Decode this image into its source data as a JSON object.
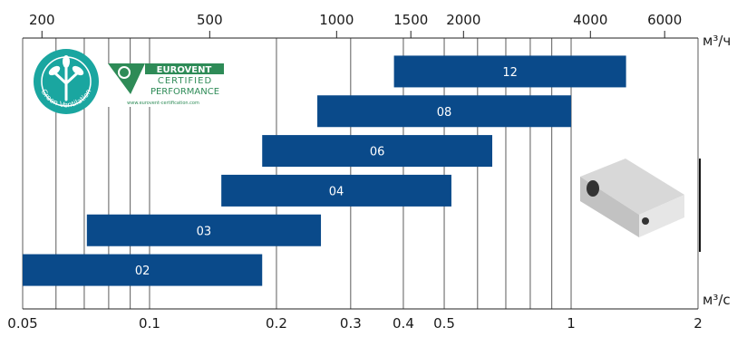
{
  "chart_data": {
    "type": "bar",
    "orientation": "horizontal",
    "x_scale": "log",
    "bottom_axis": {
      "unit": "м³/с",
      "ticks": [
        0.05,
        0.1,
        0.2,
        0.3,
        0.4,
        0.5,
        1,
        2
      ],
      "tick_labels": [
        "0.05",
        "0.1",
        "0.2",
        "0.3",
        "0.4",
        "0.5",
        "1",
        "2"
      ],
      "range": [
        0.05,
        2
      ]
    },
    "top_axis": {
      "unit": "м³/ч",
      "ticks": [
        200,
        500,
        1000,
        1500,
        2000,
        4000,
        6000
      ],
      "tick_labels": [
        "200",
        "500",
        "1000",
        "1500",
        "2000",
        "4000",
        "6000"
      ]
    },
    "grid": true,
    "bars": [
      {
        "label": "12",
        "start": 0.38,
        "end": 1.35
      },
      {
        "label": "08",
        "start": 0.25,
        "end": 1.0
      },
      {
        "label": "06",
        "start": 0.185,
        "end": 0.65
      },
      {
        "label": "04",
        "start": 0.148,
        "end": 0.52
      },
      {
        "label": "03",
        "start": 0.071,
        "end": 0.255
      },
      {
        "label": "02",
        "start": 0.05,
        "end": 0.185
      }
    ],
    "colors": {
      "bar": "#0a4a8a",
      "bar_label": "#ffffff",
      "grid": "#333333"
    }
  },
  "logos": {
    "green_ventilation": {
      "text": "Green Ventilation",
      "color": "#1aa6a0"
    },
    "eurovent": {
      "line1": "EUROVENT",
      "line2": "CERTIFIED",
      "line3": "PERFORMANCE",
      "url": "www.eurovent-certification.com",
      "color": "#2e8b57"
    }
  },
  "product_image": {
    "icon": "ventilation-unit-icon"
  }
}
